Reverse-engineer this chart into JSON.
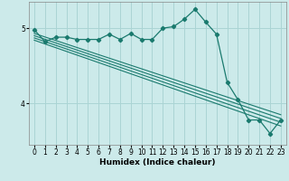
{
  "title": "",
  "xlabel": "Humidex (Indice chaleur)",
  "ylabel": "",
  "bg_color": "#cceaea",
  "line_color": "#1a7a6e",
  "grid_color": "#aad4d4",
  "x_ticks": [
    0,
    1,
    2,
    3,
    4,
    5,
    6,
    7,
    8,
    9,
    10,
    11,
    12,
    13,
    14,
    15,
    16,
    17,
    18,
    19,
    20,
    21,
    22,
    23
  ],
  "y_ticks": [
    4,
    5
  ],
  "ylim": [
    3.45,
    5.35
  ],
  "xlim": [
    -0.5,
    23.5
  ],
  "main_line_x": [
    0,
    1,
    2,
    3,
    4,
    5,
    6,
    7,
    8,
    9,
    10,
    11,
    12,
    13,
    14,
    15,
    16,
    17,
    18,
    19,
    20,
    21,
    22,
    23
  ],
  "main_line_y": [
    4.98,
    4.82,
    4.88,
    4.88,
    4.85,
    4.85,
    4.85,
    4.92,
    4.85,
    4.93,
    4.85,
    4.85,
    5.0,
    5.02,
    5.12,
    5.25,
    5.08,
    4.92,
    4.28,
    4.05,
    3.78,
    3.78,
    3.6,
    3.78
  ],
  "trend_lines": [
    {
      "x": [
        0,
        23
      ],
      "y": [
        4.93,
        3.85
      ]
    },
    {
      "x": [
        0,
        23
      ],
      "y": [
        4.9,
        3.8
      ]
    },
    {
      "x": [
        0,
        23
      ],
      "y": [
        4.87,
        3.75
      ]
    },
    {
      "x": [
        0,
        23
      ],
      "y": [
        4.84,
        3.7
      ]
    }
  ]
}
